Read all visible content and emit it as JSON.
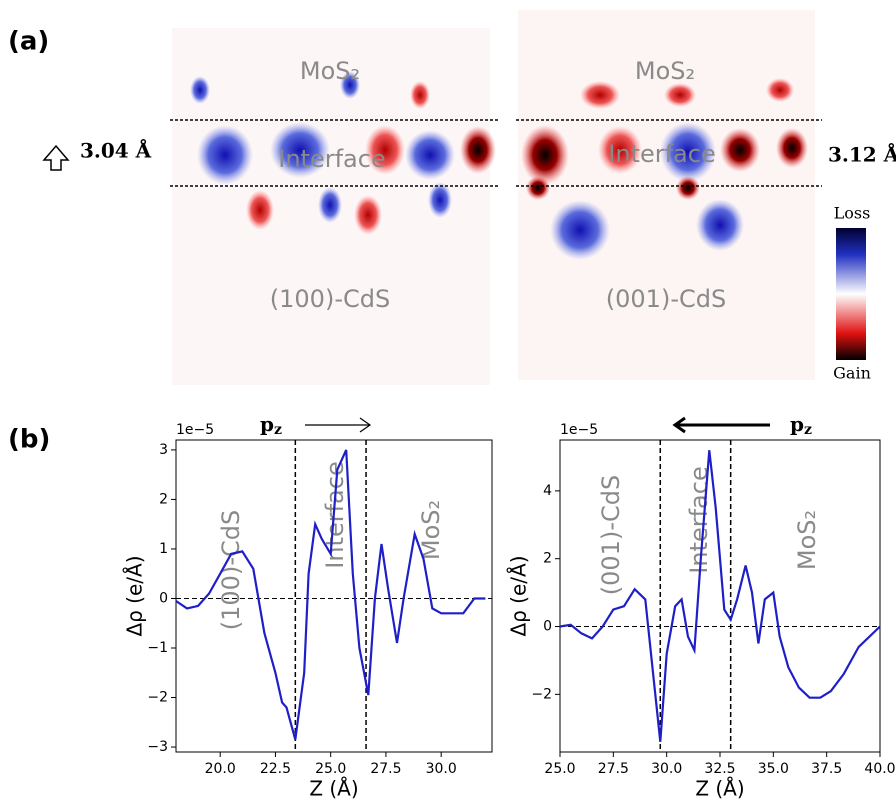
{
  "panel_labels": [
    "(a)",
    "(b)"
  ],
  "maps": [
    {
      "top": "MoS₂",
      "middle": "Interface",
      "bottom": "(100)-CdS",
      "spacing": "3.04 Å"
    },
    {
      "top": "MoS₂",
      "middle": "Interface",
      "bottom": "(001)-CdS",
      "spacing": "3.12 Å"
    }
  ],
  "colorbar": {
    "top": "Loss",
    "bottom": "Gain"
  },
  "chart_data": [
    {
      "type": "line",
      "color": "#1f1fc8",
      "offset_label": "1e−5",
      "x_label": "Z (Å)",
      "y_label": "Δρ (e/Å)",
      "arrow_label": "p",
      "arrow_label_sub": "z",
      "region_labels": [
        "(100)-CdS",
        "Interface",
        "MoS₂"
      ],
      "vlines": [
        23.4,
        26.6
      ],
      "xlim": [
        18,
        32.3
      ],
      "ylim": [
        -3.1,
        3.2
      ],
      "xticks": [
        {
          "value": 20,
          "label": "20.0"
        },
        22.5,
        {
          "value": 25,
          "label": "25.0"
        },
        27.5,
        {
          "value": 30,
          "label": "30.0"
        }
      ],
      "yticks": [
        {
          "value": -3,
          "label": "−3"
        },
        {
          "value": -2,
          "label": "−2"
        },
        {
          "value": -1,
          "label": "−1"
        },
        0,
        1,
        2,
        3
      ],
      "x": [
        18,
        18.5,
        19,
        19.5,
        20,
        20.5,
        21,
        21.5,
        22,
        22.5,
        22.8,
        23,
        23.4,
        23.8,
        24,
        24.3,
        24.6,
        25,
        25.3,
        25.7,
        26,
        26.3,
        26.7,
        27,
        27.3,
        27.6,
        28,
        28.3,
        28.8,
        29.2,
        29.6,
        30,
        30.5,
        31,
        31.5,
        32
      ],
      "values": [
        -0.05,
        -0.2,
        -0.15,
        0.1,
        0.5,
        0.9,
        0.95,
        0.6,
        -0.7,
        -1.5,
        -2.1,
        -2.2,
        -2.85,
        -1.5,
        0.5,
        1.5,
        1.2,
        0.9,
        2.6,
        3.0,
        0.5,
        -1,
        -1.95,
        0,
        1.1,
        0.2,
        -0.9,
        0,
        1.3,
        0.8,
        -0.2,
        -0.3,
        -0.3,
        -0.3,
        0,
        0
      ]
    },
    {
      "type": "line",
      "color": "#1f1fc8",
      "offset_label": "1e−5",
      "x_label": "Z (Å)",
      "y_label": "Δρ (e/Å)",
      "arrow_label": "p",
      "arrow_label_sub": "z",
      "region_labels": [
        "(001)-CdS",
        "Interface",
        "MoS₂"
      ],
      "vlines": [
        29.7,
        33
      ],
      "xlim": [
        25,
        40
      ],
      "ylim": [
        -3.7,
        5.5
      ],
      "xticks": [
        {
          "value": 25,
          "label": "25.0"
        },
        27.5,
        {
          "value": 30,
          "label": "30.0"
        },
        32.5,
        {
          "value": 35,
          "label": "35.0"
        },
        37.5,
        {
          "value": 40,
          "label": "40.0"
        }
      ],
      "yticks": [
        {
          "value": -2,
          "label": "−2"
        },
        0,
        2,
        4
      ],
      "x": [
        25,
        25.5,
        26,
        26.5,
        27,
        27.5,
        28,
        28.5,
        29,
        29.3,
        29.7,
        30,
        30.4,
        30.7,
        31,
        31.3,
        31.6,
        32,
        32.3,
        32.7,
        33,
        33.3,
        33.7,
        34,
        34.3,
        34.6,
        35,
        35.3,
        35.7,
        36.2,
        36.7,
        37.2,
        37.7,
        38.3,
        39,
        40
      ],
      "values": [
        0,
        0.05,
        -0.2,
        -0.35,
        0,
        0.5,
        0.6,
        1.1,
        0.8,
        -1,
        -3.4,
        -0.8,
        0.6,
        0.8,
        -0.3,
        -0.7,
        2,
        5.2,
        3.5,
        0.5,
        0.2,
        0.8,
        1.8,
        1,
        -0.5,
        0.8,
        1,
        -0.3,
        -1.2,
        -1.8,
        -2.1,
        -2.1,
        -1.9,
        -1.4,
        -0.6,
        0
      ]
    }
  ]
}
